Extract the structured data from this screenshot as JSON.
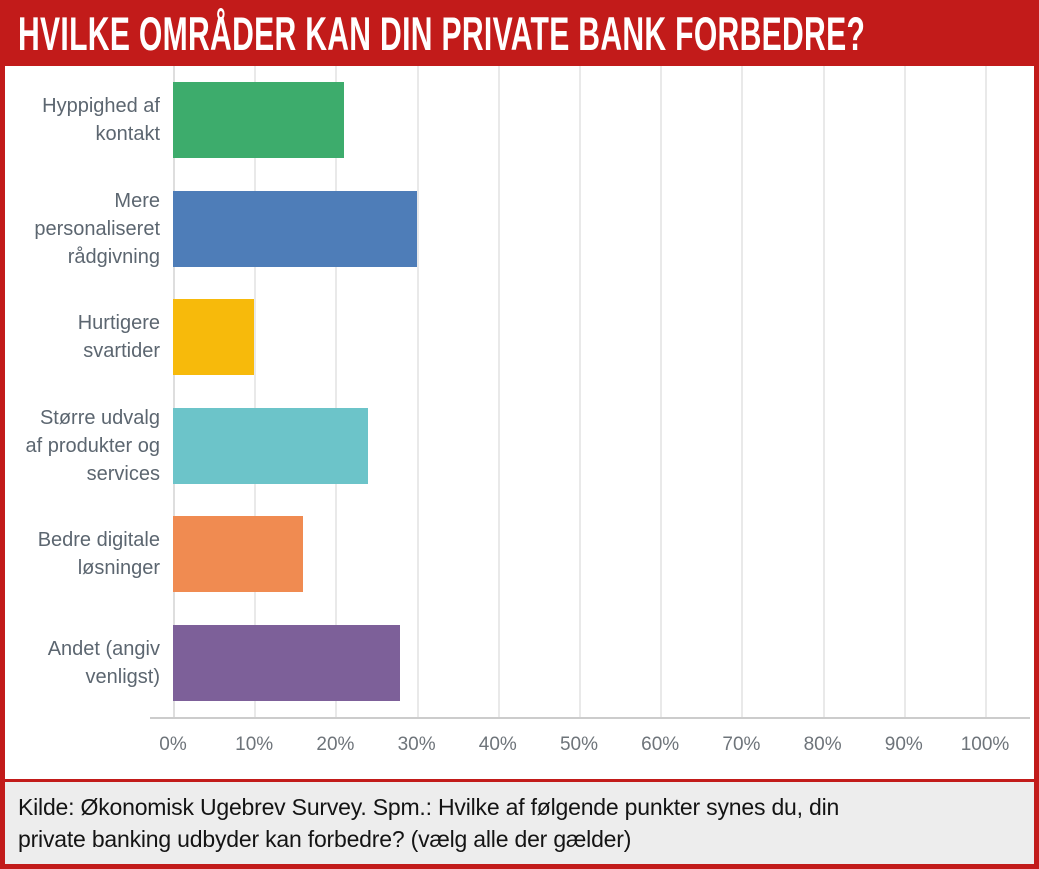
{
  "header": {
    "title": "HVILKE OMRÅDER KAN DIN PRIVATE BANK FORBEDRE?",
    "background_color": "#c21b1a",
    "text_color": "#ffffff"
  },
  "chart_data": {
    "type": "bar",
    "orientation": "horizontal",
    "title": "HVILKE OMRÅDER KAN DIN PRIVATE BANK FORBEDRE?",
    "categories": [
      "Hyppighed af kontakt",
      "Mere personaliseret rådgivning",
      "Hurtigere svartider",
      "Større udvalg af produkter og services",
      "Bedre digitale løsninger",
      "Andet (angiv venligst)"
    ],
    "category_lines": [
      [
        "Hyppighed af",
        "kontakt"
      ],
      [
        "Mere",
        "personaliseret",
        "rådgivning"
      ],
      [
        "Hurtigere",
        "svartider"
      ],
      [
        "Større udvalg",
        "af produkter og",
        "services"
      ],
      [
        "Bedre digitale",
        "løsninger"
      ],
      [
        "Andet (angiv",
        "venligst)"
      ]
    ],
    "values": [
      21,
      30,
      10,
      24,
      16,
      28
    ],
    "unit": "%",
    "bar_colors": [
      "#3dac6c",
      "#4e7db8",
      "#f7ba0b",
      "#6cc4c9",
      "#f08b51",
      "#7d6099"
    ],
    "x_ticks": [
      "0%",
      "10%",
      "20%",
      "30%",
      "40%",
      "50%",
      "60%",
      "70%",
      "80%",
      "90%",
      "100%"
    ],
    "xlim": [
      0,
      100
    ],
    "xlabel": "",
    "ylabel": "",
    "grid": true,
    "legend": false,
    "label_color": "#5c6670",
    "tick_color": "#6e747a",
    "gridline_color": "#e9e9e9"
  },
  "footer": {
    "text": "Kilde: Økonomisk Ugebrev Survey. Spm.: Hvilke af følgende punkter synes du, din private banking udbyder kan forbedre? (vælg alle der gælder)",
    "lines": [
      "Kilde: Økonomisk Ugebrev Survey. Spm.: Hvilke af følgende punkter synes du, din",
      "private banking udbyder kan forbedre? (vælg alle der gælder)"
    ],
    "background_color": "#ededed"
  }
}
